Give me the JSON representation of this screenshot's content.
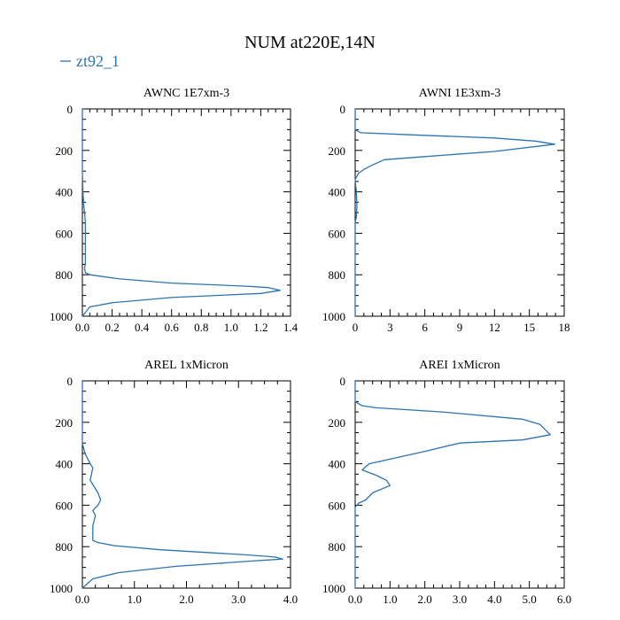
{
  "title": "NUM at220E,14N",
  "legend": {
    "label": "zt92_1",
    "color": "#2c73b0"
  },
  "chart_data": [
    {
      "type": "line",
      "title": "AWNC  1E7xm-3",
      "xlim": [
        0,
        1.4
      ],
      "ylim": [
        1000,
        0
      ],
      "xticks": [
        0,
        0.2,
        0.4,
        0.6,
        0.8,
        1.0,
        1.2,
        1.4
      ],
      "xtick_labels": [
        "0.0",
        "0.2",
        "0.4",
        "0.6",
        "0.8",
        "1.0",
        "1.2",
        "1.4"
      ],
      "yticks": [
        0,
        200,
        400,
        600,
        800,
        1000
      ],
      "ytick_labels": [
        "0",
        "200",
        "400",
        "600",
        "800",
        "1000"
      ],
      "grid": false,
      "series": [
        {
          "name": "zt92_1",
          "color": "#2c73b0",
          "x": [
            0,
            0,
            0.005,
            0.01,
            0.015,
            0.02,
            0.02,
            0.02,
            0.02,
            0.02,
            0.015,
            0.02,
            0.05,
            0.25,
            0.6,
            1.1,
            1.25,
            1.33,
            1.2,
            0.6,
            0.2,
            0.05,
            0
          ],
          "y": [
            0,
            300,
            420,
            470,
            500,
            550,
            600,
            650,
            700,
            740,
            770,
            790,
            800,
            820,
            840,
            855,
            862,
            875,
            890,
            910,
            935,
            955,
            1000
          ]
        }
      ]
    },
    {
      "type": "line",
      "title": "AWNI  1E3xm-3",
      "xlim": [
        0,
        18
      ],
      "ylim": [
        1000,
        0
      ],
      "xticks": [
        0,
        3,
        6,
        9,
        12,
        15,
        18
      ],
      "xtick_labels": [
        "0",
        "3",
        "6",
        "9",
        "12",
        "15",
        "18"
      ],
      "yticks": [
        0,
        200,
        400,
        600,
        800,
        1000
      ],
      "ytick_labels": [
        "0",
        "200",
        "400",
        "600",
        "800",
        "1000"
      ],
      "grid": false,
      "series": [
        {
          "name": "zt92_1",
          "color": "#2c73b0",
          "x": [
            0,
            0,
            0.5,
            5,
            12,
            15.5,
            17.2,
            12,
            6,
            2.5,
            1.5,
            0.8,
            0.3,
            0,
            0.1,
            0.15,
            0.1,
            0,
            0,
            0
          ],
          "y": [
            0,
            100,
            115,
            125,
            140,
            155,
            170,
            205,
            230,
            245,
            270,
            290,
            310,
            340,
            400,
            470,
            520,
            550,
            700,
            1000
          ]
        }
      ]
    },
    {
      "type": "line",
      "title": "AREL  1xMicron",
      "xlim": [
        0,
        4.0
      ],
      "ylim": [
        1000,
        0
      ],
      "xticks": [
        0,
        1,
        2,
        3,
        4
      ],
      "xtick_labels": [
        "0.0",
        "1.0",
        "2.0",
        "3.0",
        "4.0"
      ],
      "yticks": [
        0,
        200,
        400,
        600,
        800,
        1000
      ],
      "ytick_labels": [
        "0",
        "200",
        "400",
        "600",
        "800",
        "1000"
      ],
      "grid": false,
      "series": [
        {
          "name": "zt92_1",
          "color": "#2c73b0",
          "x": [
            0,
            0,
            0.05,
            0.15,
            0.2,
            0.15,
            0.2,
            0.3,
            0.35,
            0.3,
            0.2,
            0.25,
            0.2,
            0.2,
            0.2,
            0.3,
            0.6,
            1.5,
            3.2,
            3.7,
            3.85,
            3.2,
            1.8,
            0.7,
            0.2,
            0
          ],
          "y": [
            0,
            300,
            350,
            400,
            420,
            480,
            500,
            540,
            575,
            600,
            625,
            650,
            700,
            750,
            770,
            780,
            795,
            815,
            840,
            850,
            860,
            870,
            895,
            925,
            955,
            1000
          ]
        }
      ]
    },
    {
      "type": "line",
      "title": "AREI  1xMicron",
      "xlim": [
        0,
        6.0
      ],
      "ylim": [
        1000,
        0
      ],
      "xticks": [
        0,
        1,
        2,
        3,
        4,
        5,
        6
      ],
      "xtick_labels": [
        "0.0",
        "1.0",
        "2.0",
        "3.0",
        "4.0",
        "5.0",
        "6.0"
      ],
      "yticks": [
        0,
        200,
        400,
        600,
        800,
        1000
      ],
      "ytick_labels": [
        "0",
        "200",
        "400",
        "600",
        "800",
        "1000"
      ],
      "grid": false,
      "series": [
        {
          "name": "zt92_1",
          "color": "#2c73b0",
          "x": [
            0,
            0,
            0.2,
            0.6,
            2.5,
            4.8,
            5.3,
            5.6,
            4.8,
            3,
            2,
            1.2,
            0.4,
            0.2,
            0.6,
            0.9,
            1,
            0.5,
            0.3,
            0.1,
            0,
            0
          ],
          "y": [
            0,
            100,
            120,
            130,
            150,
            185,
            210,
            260,
            285,
            300,
            340,
            370,
            400,
            430,
            455,
            480,
            505,
            540,
            575,
            590,
            610,
            1000
          ]
        }
      ]
    }
  ]
}
